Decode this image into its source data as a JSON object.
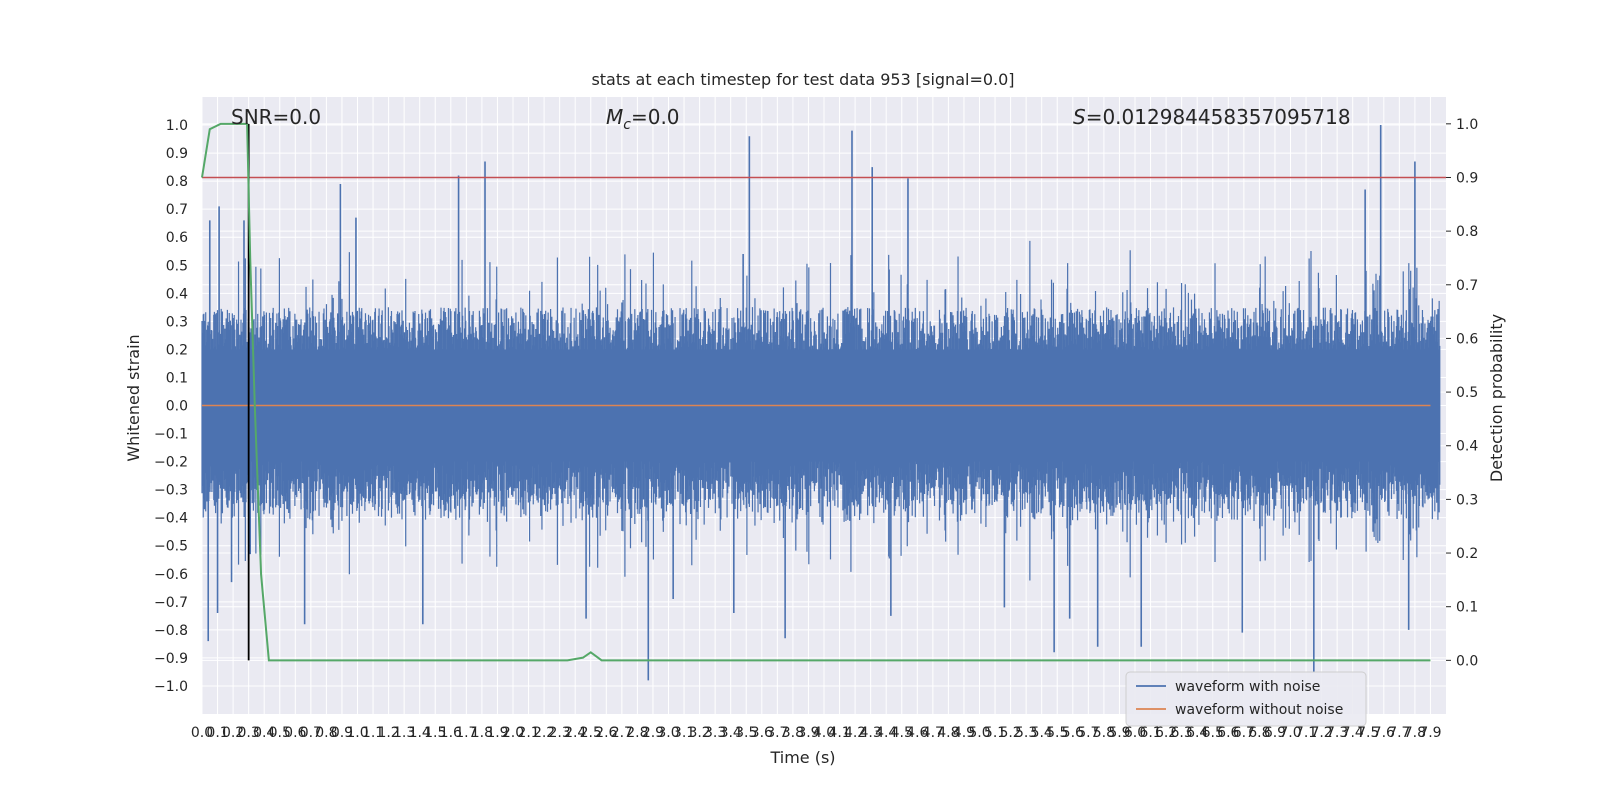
{
  "chart_data": {
    "type": "line",
    "title": "stats at each timestep for test data 953 [signal=0.0]",
    "xlabel": "Time (s)",
    "ylabel_left": "Whitened strain",
    "ylabel_right": "Detection probability",
    "xlim": [
      0.0,
      8.0
    ],
    "ylim_left": [
      -1.1,
      1.1
    ],
    "ylim_right": [
      -0.1,
      1.05
    ],
    "grid": true,
    "legend_position": "lower-right",
    "x_ticks": [
      "0.0",
      "0.1",
      "0.2",
      "0.3",
      "0.4",
      "0.5",
      "0.6",
      "0.7",
      "0.8",
      "0.9",
      "1.0",
      "1.1",
      "1.2",
      "1.3",
      "1.4",
      "1.5",
      "1.6",
      "1.7",
      "1.8",
      "1.9",
      "2.0",
      "2.1",
      "2.2",
      "2.3",
      "2.4",
      "2.5",
      "2.6",
      "2.7",
      "2.8",
      "2.9",
      "3.0",
      "3.1",
      "3.2",
      "3.3",
      "3.4",
      "3.5",
      "3.6",
      "3.7",
      "3.8",
      "3.9",
      "4.0",
      "4.1",
      "4.2",
      "4.3",
      "4.4",
      "4.5",
      "4.6",
      "4.7",
      "4.8",
      "4.9",
      "5.0",
      "5.1",
      "5.2",
      "5.3",
      "5.4",
      "5.5",
      "5.6",
      "5.7",
      "5.8",
      "5.9",
      "6.0",
      "6.1",
      "6.2",
      "6.3",
      "6.4",
      "6.5",
      "6.6",
      "6.7",
      "6.8",
      "6.9",
      "7.0",
      "7.1",
      "7.2",
      "7.3",
      "7.4",
      "7.5",
      "7.6",
      "7.7",
      "7.8",
      "7.9"
    ],
    "y_ticks_left": [
      "−1.0",
      "−0.9",
      "−0.8",
      "−0.7",
      "−0.6",
      "−0.5",
      "−0.4",
      "−0.3",
      "−0.2",
      "−0.1",
      "0.0",
      "0.1",
      "0.2",
      "0.3",
      "0.4",
      "0.5",
      "0.6",
      "0.7",
      "0.8",
      "0.9",
      "1.0"
    ],
    "y_ticks_right": [
      "0.0",
      "0.1",
      "0.2",
      "0.3",
      "0.4",
      "0.5",
      "0.6",
      "0.7",
      "0.8",
      "0.9",
      "1.0"
    ],
    "annotations": {
      "snr": "SNR=0.0",
      "mc_symbol": "M",
      "mc_sub": "c",
      "mc_value": "=0.0",
      "s_symbol": "S",
      "s_value": "=0.012984458357095718"
    },
    "threshold_right": 0.9,
    "marker_time": 0.3,
    "series": [
      {
        "name": "waveform with noise",
        "axis": "left",
        "color": "#4c72b0",
        "envelope": "dense noise, |values| mostly below 0.5, occasional spikes to ~±1.0",
        "spikes": [
          [
            0.04,
            -0.84
          ],
          [
            0.05,
            0.66
          ],
          [
            0.1,
            -0.74
          ],
          [
            0.11,
            0.71
          ],
          [
            0.19,
            -0.63
          ],
          [
            0.27,
            0.66
          ],
          [
            0.31,
            -0.53
          ],
          [
            0.42,
            -0.01
          ],
          [
            0.66,
            -0.78
          ],
          [
            0.89,
            0.79
          ],
          [
            0.99,
            0.67
          ],
          [
            1.42,
            -0.78
          ],
          [
            1.65,
            0.82
          ],
          [
            1.82,
            0.87
          ],
          [
            2.47,
            -0.76
          ],
          [
            2.87,
            -0.98
          ],
          [
            3.03,
            -0.69
          ],
          [
            3.42,
            -0.74
          ],
          [
            3.48,
            0.54
          ],
          [
            3.52,
            0.96
          ],
          [
            3.75,
            -0.83
          ],
          [
            4.18,
            0.98
          ],
          [
            4.31,
            0.85
          ],
          [
            4.54,
            0.81
          ],
          [
            4.43,
            -0.75
          ],
          [
            5.16,
            -0.72
          ],
          [
            5.48,
            -0.88
          ],
          [
            5.58,
            -0.76
          ],
          [
            5.76,
            -0.86
          ],
          [
            6.04,
            -0.86
          ],
          [
            6.69,
            -0.81
          ],
          [
            7.15,
            -0.95
          ],
          [
            7.48,
            0.77
          ],
          [
            7.58,
            1.0
          ],
          [
            7.8,
            0.87
          ],
          [
            7.76,
            -0.8
          ]
        ]
      },
      {
        "name": "waveform without noise",
        "axis": "left",
        "color": "#dd8452",
        "x": [
          0.0,
          7.9
        ],
        "y": [
          0.0,
          0.0
        ]
      },
      {
        "name": "",
        "axis": "right",
        "color": "#55a868",
        "x": [
          0.0,
          0.05,
          0.12,
          0.2,
          0.29,
          0.31,
          0.34,
          0.38,
          0.43,
          1.0,
          2.0,
          2.35,
          2.45,
          2.5,
          2.57,
          3.0,
          4.0,
          5.0,
          6.0,
          7.0,
          7.9
        ],
        "y": [
          0.9,
          0.99,
          1.0,
          1.0,
          1.0,
          0.75,
          0.47,
          0.16,
          0.0,
          0.0,
          0.0,
          0.0,
          0.005,
          0.015,
          0.0,
          0.0,
          0.0,
          0.0,
          0.0,
          0.0,
          0.0
        ]
      }
    ],
    "threshold_color": "#c44e52",
    "marker_color": "#000000"
  }
}
